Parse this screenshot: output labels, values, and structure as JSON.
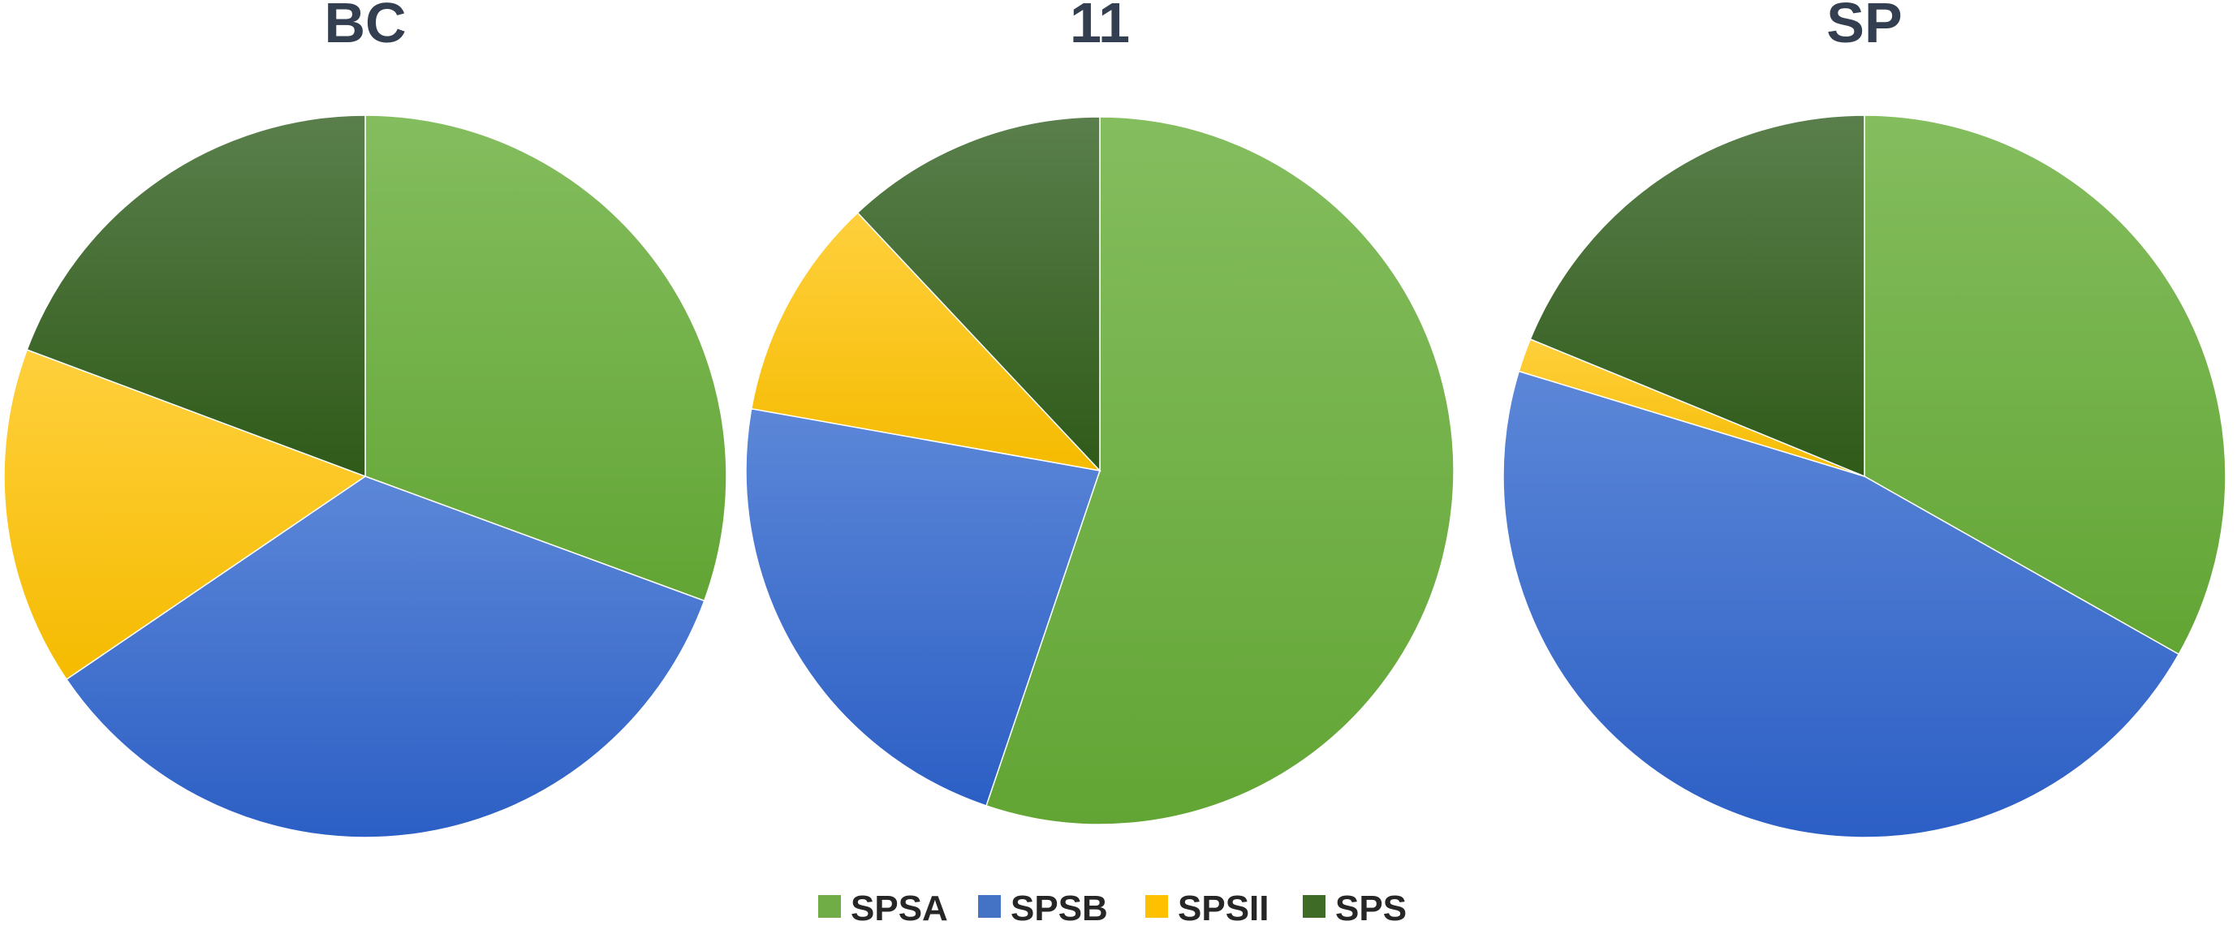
{
  "chart_data": [
    {
      "type": "pie",
      "title": "BC",
      "categories": [
        "SPSA",
        "SPSB",
        "SPSII",
        "SPS"
      ],
      "values": [
        30.6,
        34.9,
        15.2,
        19.3
      ]
    },
    {
      "type": "pie",
      "title": "11",
      "categories": [
        "SPSA",
        "SPSB",
        "SPSII",
        "SPS"
      ],
      "values": [
        55.2,
        22.6,
        10.2,
        12.0
      ]
    },
    {
      "type": "pie",
      "title": "SP",
      "categories": [
        "SPSA",
        "SPSB",
        "SPSII",
        "SPS"
      ],
      "values": [
        33.2,
        46.5,
        1.5,
        18.8
      ]
    }
  ],
  "legend": {
    "placement": "bottom",
    "items": [
      {
        "label": "SPSA",
        "color": "#70ad47"
      },
      {
        "label": "SPSB",
        "color": "#4472c4"
      },
      {
        "label": "SPSII",
        "color": "#ffc000"
      },
      {
        "label": "SPS",
        "color": "#3e6b26"
      }
    ]
  },
  "colors": {
    "SPSA": {
      "light": "#84bd5e",
      "dark": "#62a534"
    },
    "SPSB": {
      "light": "#5c87d8",
      "dark": "#2c5fc5"
    },
    "SPSII": {
      "light": "#ffd03d",
      "dark": "#f5bb00"
    },
    "SPS": {
      "light": "#5a7f4c",
      "dark": "#2f5a18"
    }
  }
}
